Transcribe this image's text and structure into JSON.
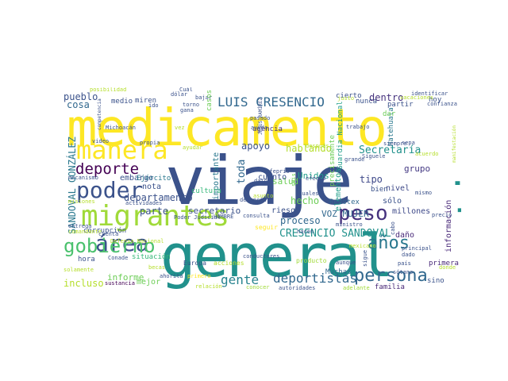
{
  "words": [
    {
      "text": "medicamento",
      "color": "#fde725"
    },
    {
      "text": "viaje",
      "color": "#3b528b"
    },
    {
      "text": "general",
      "color": "#21918c"
    },
    {
      "text": "migrantes",
      "color": "#a0da39"
    },
    {
      "text": "tiempo",
      "color": "#21918c"
    },
    {
      "text": "manera",
      "color": "#fde725"
    },
    {
      "text": "área",
      "color": "#3b528b"
    },
    {
      "text": "poder",
      "color": "#3b528b"
    },
    {
      "text": "gobierno",
      "color": "#4ac16d"
    },
    {
      "text": "peso",
      "color": "#46327e"
    },
    {
      "text": "persona",
      "color": "#31688e"
    },
    {
      "text": "deportistas",
      "color": "#31688e"
    },
    {
      "text": "LUIS CRESENCIO",
      "color": "#31688e"
    },
    {
      "text": "deporte",
      "color": "#440154"
    },
    {
      "text": "años",
      "color": "#2a788e"
    },
    {
      "text": "gente",
      "color": "#26828e"
    },
    {
      "text": "CRESENCIO SANDOVAL",
      "color": "#21918c"
    },
    {
      "text": "Secretaría",
      "color": "#21918c"
    },
    {
      "text": "SANDOVAL GONZÁLEZ",
      "color": "#2a788e"
    },
    {
      "text": "parte",
      "color": "#3b528b"
    },
    {
      "text": "secretario",
      "color": "#3b528b"
    },
    {
      "text": "hablando",
      "color": "#b5de2b"
    },
    {
      "text": "apoyo",
      "color": "#3b528b"
    },
    {
      "text": "hecho",
      "color": "#6ece58"
    },
    {
      "text": "toda",
      "color": "#31688e"
    },
    {
      "text": "proceso",
      "color": "#31688e"
    },
    {
      "text": "pueblo",
      "color": "#3b528b"
    },
    {
      "text": "cosa",
      "color": "#31688e"
    },
    {
      "text": "dentro",
      "color": "#46327e"
    },
    {
      "text": "incluso",
      "color": "#b5de2b"
    },
    {
      "text": "informe",
      "color": "#6ece58"
    },
    {
      "text": "departamento",
      "color": "#3b528b"
    },
    {
      "text": "importante",
      "color": "#2a788e"
    },
    {
      "text": "elementos",
      "color": "#1f9e89"
    },
    {
      "text": "tipo",
      "color": "#3e4989"
    },
    {
      "text": "grupo",
      "color": "#443983"
    },
    {
      "text": "nivel",
      "color": "#3e4989"
    },
    {
      "text": "VOZ MUJER",
      "color": "#31688e"
    },
    {
      "text": "millones",
      "color": "#3e4989"
    },
    {
      "text": "información",
      "color": "#482878"
    },
    {
      "text": "Unidos",
      "color": "#1f9e89"
    },
    {
      "text": "salud",
      "color": "#6ece58"
    },
    {
      "text": "riesgo",
      "color": "#3b528b"
    },
    {
      "text": "nota",
      "color": "#3b528b"
    },
    {
      "text": "embargo",
      "color": "#3b528b"
    },
    {
      "text": "cuánto",
      "color": "#3b528b"
    },
    {
      "text": "sólo",
      "color": "#3b528b"
    },
    {
      "text": "daño",
      "color": "#482878"
    },
    {
      "text": "mejor",
      "color": "#6ece58"
    },
    {
      "text": "cultura",
      "color": "#35b779"
    },
    {
      "text": "Ejército",
      "color": "#2a788e"
    },
    {
      "text": "corrupción",
      "color": "#3b528b"
    },
    {
      "text": "miren",
      "color": "#3b528b"
    },
    {
      "text": "medio",
      "color": "#3b528b"
    },
    {
      "text": "situación",
      "color": "#35b779"
    },
    {
      "text": "Muchas",
      "color": "#31688e"
    },
    {
      "text": "Redotex",
      "color": "#31688e"
    },
    {
      "text": "cierto",
      "color": "#3b528b"
    },
    {
      "text": "agencia",
      "color": "#46327e"
    },
    {
      "text": "bien",
      "color": "#3b528b"
    },
    {
      "text": "Guardia Nacional",
      "color": "#1f9e89"
    },
    {
      "text": "Matehuala",
      "color": "#2a788e"
    },
    {
      "text": "dar",
      "color": "#6ece58"
    },
    {
      "text": "hoy",
      "color": "#3b528b"
    },
    {
      "text": "partir",
      "color": "#3b528b"
    },
    {
      "text": "nunca",
      "color": "#3b528b"
    },
    {
      "text": "primera",
      "color": "#482878"
    },
    {
      "text": "sino",
      "color": "#3b528b"
    },
    {
      "text": "familia",
      "color": "#482878"
    },
    {
      "text": "hora",
      "color": "#3b528b"
    },
    {
      "text": "acciones",
      "color": "#b5de2b"
    },
    {
      "text": "producto",
      "color": "#a0da39"
    },
    {
      "text": "Europa",
      "color": "#3b528b"
    },
    {
      "text": "consulta",
      "color": "#3b528b"
    },
    {
      "text": "HOMBRE",
      "color": "#3b528b"
    },
    {
      "text": "Poder Judicial",
      "color": "#3b528b"
    },
    {
      "text": "Defensa Nacional",
      "color": "#b5de2b"
    },
    {
      "text": "Conade",
      "color": "#3b528b"
    },
    {
      "text": "Cofepris",
      "color": "#3b528b"
    },
    {
      "text": "asunto",
      "color": "#b5de2b"
    },
    {
      "text": "hacen",
      "color": "#3b528b"
    },
    {
      "text": "ministro",
      "color": "#3b528b"
    },
    {
      "text": "seguir",
      "color": "#fde725"
    },
    {
      "text": "conductores",
      "color": "#3b528b"
    },
    {
      "text": "conocer",
      "color": "#a0da39"
    },
    {
      "text": "autoridades",
      "color": "#3b528b"
    },
    {
      "text": "adelante",
      "color": "#a0da39"
    },
    {
      "text": "relación",
      "color": "#b5de2b"
    },
    {
      "text": "ahorita",
      "color": "#3b528b"
    },
    {
      "text": "primero",
      "color": "#fde725"
    },
    {
      "text": "sustancia",
      "color": "#440154"
    },
    {
      "text": "solamente",
      "color": "#b5de2b"
    },
    {
      "text": "comandante",
      "color": "#b5de2b"
    },
    {
      "text": "becas",
      "color": "#b5de2b"
    },
    {
      "text": "aunque",
      "color": "#3b528b"
    },
    {
      "text": "país",
      "color": "#3b528b"
    },
    {
      "text": "principal",
      "color": "#3b528b"
    },
    {
      "text": "precio",
      "color": "#3b528b"
    },
    {
      "text": "mismo",
      "color": "#3b528b"
    },
    {
      "text": "donde",
      "color": "#b5de2b"
    },
    {
      "text": "dado",
      "color": "#3b528b"
    },
    {
      "text": "mexicano",
      "color": "#b5de2b"
    },
    {
      "text": "cuenta",
      "color": "#3b528b"
    },
    {
      "text": "entrega",
      "color": "#3b528b"
    },
    {
      "text": "misiones",
      "color": "#b5de2b"
    },
    {
      "text": "mecanismo",
      "color": "#3b528b"
    },
    {
      "text": "video",
      "color": "#3b528b"
    },
    {
      "text": "posibilidad",
      "color": "#b5de2b"
    },
    {
      "text": "dólar",
      "color": "#3b528b"
    },
    {
      "text": "Cuál",
      "color": "#3b528b"
    },
    {
      "text": "bajar",
      "color": "#3b528b"
    },
    {
      "text": "torno",
      "color": "#3b528b"
    },
    {
      "text": "justo",
      "color": "#b5de2b"
    },
    {
      "text": "vacaciones",
      "color": "#b5de2b"
    },
    {
      "text": "identificar",
      "color": "#3b528b"
    },
    {
      "text": "confianza",
      "color": "#3b528b"
    },
    {
      "text": "competencia",
      "color": "#3b528b"
    },
    {
      "text": "Michoacán",
      "color": "#3b528b"
    },
    {
      "text": "gana",
      "color": "#3b528b"
    },
    {
      "text": "ido",
      "color": "#3b528b"
    },
    {
      "text": "casos",
      "color": "#6ece58"
    },
    {
      "text": "vez",
      "color": "#b5de2b"
    },
    {
      "text": "pasado",
      "color": "#3b528b"
    },
    {
      "text": "ayuda",
      "color": "#3b528b"
    },
    {
      "text": "ayudar",
      "color": "#b5de2b"
    },
    {
      "text": "propia",
      "color": "#3b528b"
    },
    {
      "text": "JESÚS RAMÍREZ",
      "color": "#3b528b"
    },
    {
      "text": "trabajo",
      "color": "#3b528b"
    },
    {
      "text": "sepa",
      "color": "#3b528b"
    },
    {
      "text": "siempre",
      "color": "#3b528b"
    },
    {
      "text": "acuerdo",
      "color": "#b5de2b"
    },
    {
      "text": "grande",
      "color": "#3b528b"
    },
    {
      "text": "Síguele",
      "color": "#3b528b"
    },
    {
      "text": "después",
      "color": "#b5de2b"
    },
    {
      "text": "precisamente",
      "color": "#6ece58"
    },
    {
      "text": "denuncia",
      "color": "#3b528b"
    },
    {
      "text": "dato",
      "color": "#3b528b"
    },
    {
      "text": "seis",
      "color": "#6ece58"
    },
    {
      "text": "efecto",
      "color": "#3b528b"
    },
    {
      "text": "iguales",
      "color": "#3b528b"
    },
    {
      "text": "actividades",
      "color": "#3b528b"
    },
    {
      "text": "sótano",
      "color": "#3b528b"
    },
    {
      "text": "cabo",
      "color": "#3b528b"
    },
    {
      "text": "sigue",
      "color": "#3b528b"
    },
    {
      "text": "manifestación",
      "color": "#b5de2b"
    }
  ]
}
